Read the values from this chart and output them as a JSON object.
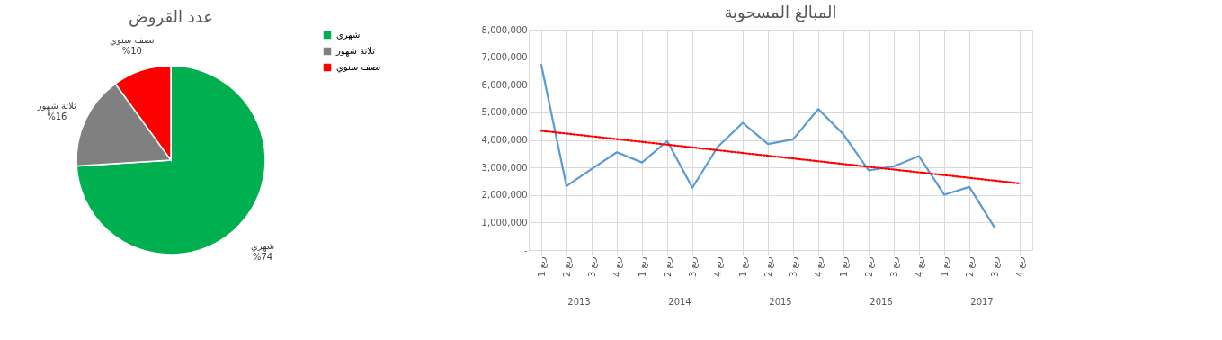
{
  "chart_data": [
    {
      "type": "pie",
      "title": "عدد القروض",
      "categories": [
        "شهري",
        "ثلاثة شهور",
        "نصف سنوي"
      ],
      "values": [
        74,
        16,
        10
      ],
      "colors": [
        "#00b050",
        "#808080",
        "#ff0000"
      ],
      "value_labels": [
        "%74",
        "%16",
        "%10"
      ],
      "legend": "right"
    },
    {
      "type": "line",
      "title": "المبالغ المسحوبة",
      "categories": [
        "ربع 1",
        "ربع 2",
        "ربع 3",
        "ربع 4",
        "ربع 1",
        "ربع 2",
        "ربع 3",
        "ربع 4",
        "ربع 1",
        "ربع 2",
        "ربع 3",
        "ربع 4",
        "ربع 1",
        "ربع 2",
        "ربع 3",
        "ربع 4",
        "ربع 1",
        "ربع 2",
        "ربع 3",
        "ربع 4"
      ],
      "series": [
        {
          "color": "#5b9bd5",
          "line_style": "solid",
          "values": [
            6720000,
            2320000,
            2940000,
            3550000,
            3180000,
            3960000,
            2260000,
            3740000,
            4620000,
            3850000,
            4020000,
            5120000,
            4200000,
            2890000,
            3040000,
            3410000,
            2010000,
            2290000,
            820000,
            null
          ]
        },
        {
          "type": "line",
          "color": "#ff0000",
          "line_style": "dotted",
          "values": [
            4330000,
            null,
            null,
            null,
            null,
            null,
            null,
            null,
            null,
            null,
            null,
            null,
            null,
            null,
            null,
            null,
            null,
            null,
            null,
            2420000
          ]
        }
      ],
      "ylim": [
        0,
        8000000
      ],
      "yticks": [
        {
          "value": 0,
          "label": "-"
        },
        {
          "value": 1000000,
          "label": "1,000,000"
        },
        {
          "value": 2000000,
          "label": "2,000,000"
        },
        {
          "value": 3000000,
          "label": "3,000,000"
        },
        {
          "value": 4000000,
          "label": "4,000,000"
        },
        {
          "value": 5000000,
          "label": "5,000,000"
        },
        {
          "value": 6000000,
          "label": "6,000,000"
        },
        {
          "value": 7000000,
          "label": "7,000,000"
        },
        {
          "value": 8000000,
          "label": "8,000,000"
        }
      ],
      "grid": true,
      "annotations": [
        "2013",
        "2014",
        "2015",
        "2016",
        "2017"
      ]
    }
  ]
}
